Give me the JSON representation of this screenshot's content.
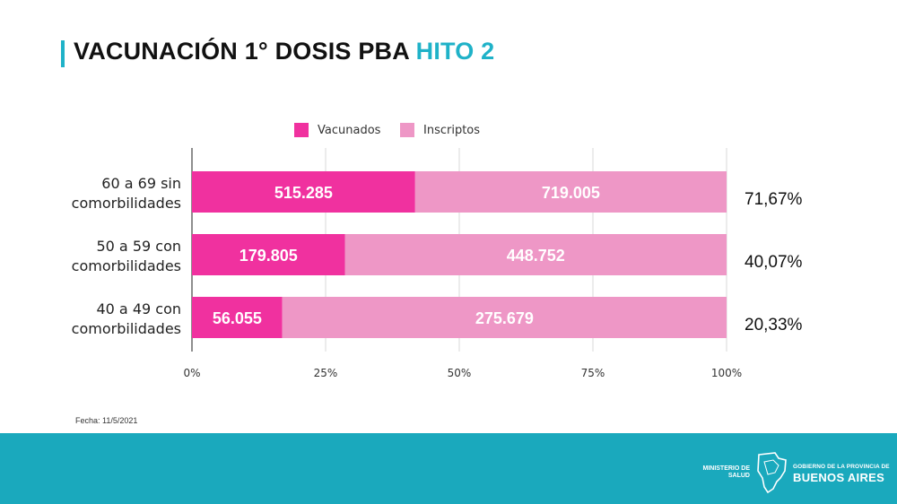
{
  "header": {
    "title_main": "VACUNACIÓN 1° DOSIS PBA",
    "title_accent": "HITO 2",
    "accent_color": "#1fb2c8"
  },
  "chart_data": {
    "type": "bar",
    "orientation": "horizontal",
    "stacked": true,
    "normalized": true,
    "legend": [
      {
        "name": "Vacunados",
        "color": "#f0319f"
      },
      {
        "name": "Inscriptos",
        "color": "#ee97c6"
      }
    ],
    "legend_position": "top",
    "categories": [
      [
        "60 a 69 sin",
        "comorbilidades"
      ],
      [
        "50 a 59 con",
        "comorbilidades"
      ],
      [
        "40 a 49 con",
        "comorbilidades"
      ]
    ],
    "series": [
      {
        "name": "Vacunados",
        "values": [
          515285,
          179805,
          56055
        ],
        "labels": [
          "515.285",
          "179.805",
          "56.055"
        ]
      },
      {
        "name": "Inscriptos",
        "values": [
          719005,
          448752,
          275679
        ],
        "labels": [
          "719.005",
          "448.752",
          "275.679"
        ]
      }
    ],
    "percent_of_total": [
      71.67,
      40.07,
      20.33
    ],
    "percent_labels": [
      "71,67%",
      "40,07%",
      "20,33%"
    ],
    "xticks": [
      "0%",
      "25%",
      "50%",
      "75%",
      "100%"
    ],
    "xlim": [
      0,
      100
    ],
    "grid": true
  },
  "footer": {
    "date": "Fecha: 11/5/2021",
    "ministry_line1": "MINISTERIO DE",
    "ministry_line2": "SALUD",
    "gov_line": "GOBIERNO DE LA PROVINCIA DE",
    "province": "BUENOS AIRES",
    "bg_color": "#1aa9bd"
  }
}
